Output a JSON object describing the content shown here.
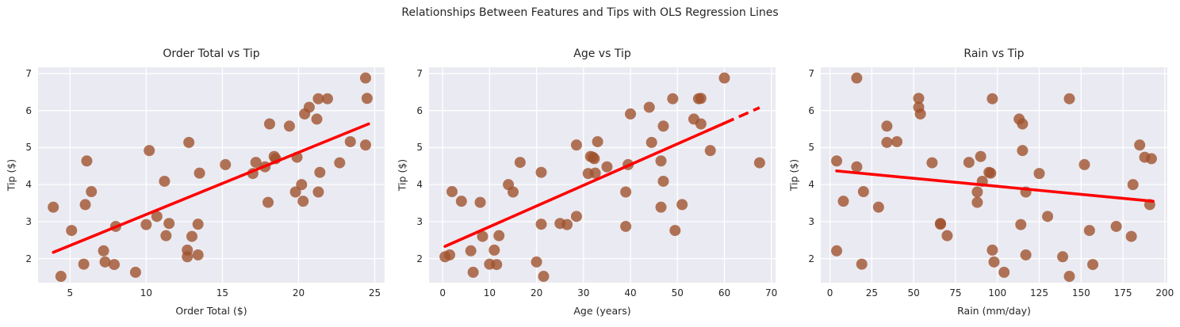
{
  "figure_title": "Relationships Between Features and Tips with OLS Regression Lines",
  "colors": {
    "figure_background": "#ffffff",
    "axes_background": "#eaeaf2",
    "grid": "#ffffff",
    "scatter": "#a0522d",
    "scatter_opacity": 0.8,
    "regression_line": "#ff0000",
    "text": "#262626"
  },
  "chart_data": [
    {
      "type": "scatter",
      "title": "Order Total vs Tip",
      "xlabel": "Order Total ($)",
      "ylabel": "Tip ($)",
      "x_key": "order_total",
      "xlim": [
        2.9,
        25.65
      ],
      "ylim": [
        1.35,
        7.17
      ],
      "xticks": [
        5,
        10,
        15,
        20,
        25
      ],
      "yticks": [
        2,
        3,
        4,
        5,
        6,
        7
      ],
      "grid": true,
      "legend": "none",
      "regression_line": {
        "solid": [
          [
            3.9,
            2.17
          ],
          [
            24.6,
            5.64
          ]
        ]
      }
    },
    {
      "type": "scatter",
      "title": "Age vs Tip",
      "xlabel": "Age (years)",
      "ylabel": "Tip ($)",
      "x_key": "age",
      "xlim": [
        -2.9,
        70.9
      ],
      "ylim": [
        1.35,
        7.17
      ],
      "xticks": [
        0,
        10,
        20,
        30,
        40,
        50,
        60,
        70
      ],
      "yticks": [
        2,
        3,
        4,
        5,
        6,
        7
      ],
      "grid": true,
      "legend": "none",
      "regression_line": {
        "solid": [
          [
            0.5,
            2.33
          ],
          [
            60,
            5.66
          ]
        ],
        "dashed": [
          [
            60,
            5.66
          ],
          [
            67.5,
            6.08
          ]
        ]
      }
    },
    {
      "type": "scatter",
      "title": "Rain vs Tip",
      "xlabel": "Rain (mm/day)",
      "ylabel": "Tip ($)",
      "x_key": "rain",
      "xlim": [
        -5.5,
        201.5
      ],
      "ylim": [
        1.35,
        7.17
      ],
      "xticks": [
        0,
        25,
        50,
        75,
        100,
        125,
        150,
        175,
        200
      ],
      "yticks": [
        2,
        3,
        4,
        5,
        6,
        7
      ],
      "grid": true,
      "legend": "none",
      "regression_line": {
        "solid": [
          [
            4,
            4.37
          ],
          [
            193,
            3.55
          ]
        ]
      }
    }
  ],
  "points": {
    "order_total": [
      3.9,
      4.4,
      5.1,
      5.9,
      6.0,
      6.1,
      6.4,
      7.2,
      7.3,
      7.9,
      8.0,
      9.3,
      10.0,
      10.2,
      10.7,
      11.2,
      11.3,
      11.5,
      12.7,
      12.7,
      12.8,
      13.0,
      13.4,
      13.4,
      13.5,
      15.2,
      17.0,
      17.2,
      17.8,
      18.0,
      18.1,
      18.4,
      18.5,
      19.4,
      19.8,
      19.9,
      20.2,
      20.3,
      20.4,
      20.7,
      21.2,
      21.3,
      21.3,
      21.4,
      21.9,
      22.7,
      23.4,
      24.4,
      24.4,
      24.5
    ],
    "age": [
      46.5,
      21.5,
      49.5,
      10.0,
      51.0,
      46.5,
      2.0,
      6.0,
      20.0,
      11.5,
      39.0,
      6.5,
      26.5,
      57.0,
      28.5,
      47.0,
      12.0,
      25.0,
      11.0,
      0.5,
      44.5,
      8.5,
      21.0,
      1.5,
      32.5,
      39.5,
      31.0,
      16.5,
      35.0,
      8.0,
      55.0,
      31.5,
      32.3,
      47.0,
      15.0,
      32.0,
      14.0,
      4.0,
      40.0,
      44.0,
      53.5,
      39.0,
      49.0,
      21.0,
      54.5,
      67.5,
      33.0,
      28.5,
      60.0,
      55.0
    ],
    "rain": [
      29,
      143,
      155,
      19,
      191,
      4,
      20,
      4,
      98,
      157,
      171,
      104,
      114,
      115,
      130,
      91,
      70,
      66,
      97,
      139,
      34,
      180,
      66,
      117,
      96,
      152,
      125,
      83,
      16,
      88,
      115,
      90,
      192,
      34,
      88,
      188,
      181,
      8,
      54,
      53,
      113,
      117,
      97,
      95,
      143,
      61,
      40,
      185,
      16,
      53
    ],
    "tip": [
      3.39,
      1.52,
      2.76,
      1.85,
      3.46,
      4.64,
      3.81,
      2.21,
      1.91,
      1.84,
      2.87,
      1.63,
      2.92,
      4.92,
      3.14,
      4.09,
      2.62,
      2.95,
      2.23,
      2.05,
      5.14,
      2.6,
      2.93,
      2.1,
      4.31,
      4.54,
      4.3,
      4.6,
      4.48,
      3.52,
      5.64,
      4.76,
      4.7,
      5.58,
      3.8,
      4.74,
      4.0,
      3.55,
      5.91,
      6.09,
      5.77,
      3.8,
      6.32,
      4.33,
      6.32,
      4.59,
      5.16,
      5.07,
      6.88,
      6.33
    ]
  }
}
